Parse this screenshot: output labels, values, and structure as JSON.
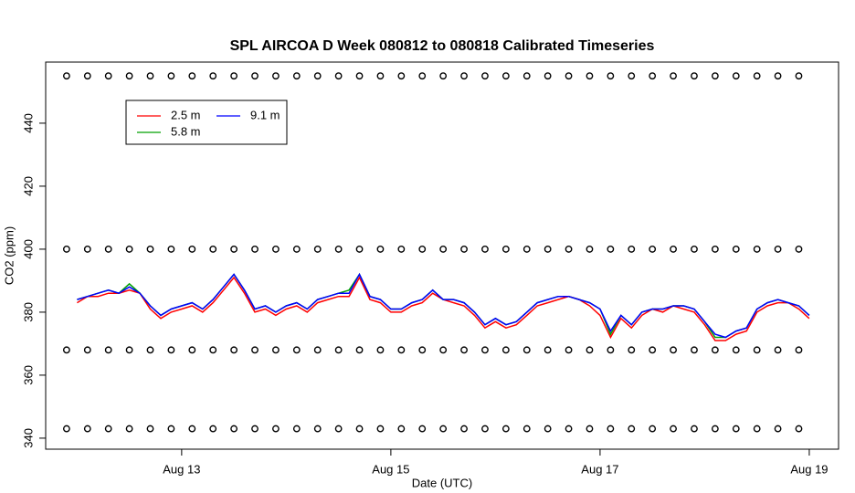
{
  "chart_data": {
    "type": "line",
    "title": "SPL AIRCOA D  Week 080812 to 080818  Calibrated Timeseries",
    "x_label": "Date (UTC)",
    "y_label": "CO2 (ppm)",
    "xlim": [
      -0.3,
      7.28
    ],
    "xticks": [
      {
        "value": 1,
        "label": "Aug 13"
      },
      {
        "value": 3,
        "label": "Aug 15"
      },
      {
        "value": 5,
        "label": "Aug 17"
      },
      {
        "value": 7,
        "label": "Aug 19"
      }
    ],
    "ylim": [
      336.5,
      459.4
    ],
    "yticks": [
      340,
      360,
      380,
      400,
      420,
      440
    ],
    "x": [
      0,
      0.1,
      0.2,
      0.3,
      0.4,
      0.5,
      0.6,
      0.7,
      0.8,
      0.9,
      1,
      1.1,
      1.2,
      1.3,
      1.4,
      1.5,
      1.6,
      1.7,
      1.8,
      1.9,
      2,
      2.1,
      2.2,
      2.3,
      2.4,
      2.5,
      2.6,
      2.7,
      2.8,
      2.9,
      3,
      3.1,
      3.2,
      3.3,
      3.4,
      3.5,
      3.6,
      3.7,
      3.8,
      3.9,
      4,
      4.1,
      4.2,
      4.3,
      4.4,
      4.5,
      4.6,
      4.7,
      4.8,
      4.9,
      5,
      5.1,
      5.2,
      5.3,
      5.4,
      5.5,
      5.6,
      5.7,
      5.8,
      5.9,
      6,
      6.1,
      6.2,
      6.3,
      6.4,
      6.5,
      6.6,
      6.7,
      6.8,
      6.9,
      7
    ],
    "series": [
      {
        "name": "2.5 m",
        "color": "#ff0000",
        "values": [
          383,
          385,
          385,
          386,
          386,
          387,
          386,
          381,
          378,
          380,
          381,
          382,
          380,
          383,
          387,
          391,
          386,
          380,
          381,
          379,
          381,
          382,
          380,
          383,
          384,
          385,
          385,
          391,
          384,
          383,
          380,
          380,
          382,
          383,
          386,
          384,
          383,
          382,
          379,
          375,
          377,
          375,
          376,
          379,
          382,
          383,
          384,
          385,
          384,
          382,
          379,
          372,
          378,
          375,
          379,
          381,
          380,
          382,
          381,
          380,
          376,
          371,
          371,
          373,
          374,
          380,
          382,
          383,
          383,
          381,
          378
        ]
      },
      {
        "name": "5.8 m",
        "color": "#00a000",
        "values": [
          384,
          385,
          386,
          387,
          386,
          389,
          386,
          382,
          379,
          381,
          382,
          383,
          381,
          384,
          388,
          392,
          387,
          381,
          382,
          380,
          382,
          383,
          381,
          384,
          385,
          386,
          387,
          392,
          385,
          384,
          381,
          381,
          383,
          384,
          387,
          384,
          384,
          383,
          380,
          376,
          378,
          376,
          377,
          380,
          383,
          384,
          385,
          385,
          384,
          383,
          381,
          373,
          379,
          376,
          380,
          381,
          381,
          382,
          382,
          381,
          377,
          372,
          372,
          374,
          375,
          381,
          383,
          384,
          383,
          382,
          379
        ]
      },
      {
        "name": "9.1 m",
        "color": "#0000ff",
        "values": [
          384,
          385,
          386,
          387,
          386,
          388,
          386,
          382,
          379,
          381,
          382,
          383,
          381,
          384,
          388,
          392,
          387,
          381,
          382,
          380,
          382,
          383,
          381,
          384,
          385,
          386,
          386,
          392,
          385,
          384,
          381,
          381,
          383,
          384,
          387,
          384,
          384,
          383,
          380,
          376,
          378,
          376,
          377,
          380,
          383,
          384,
          385,
          385,
          384,
          383,
          381,
          374,
          379,
          376,
          380,
          381,
          381,
          382,
          382,
          381,
          377,
          373,
          372,
          374,
          375,
          381,
          383,
          384,
          383,
          382,
          379
        ]
      }
    ],
    "calibration": {
      "x": [
        -0.1,
        0.1,
        0.3,
        0.5,
        0.7,
        0.9,
        1.1,
        1.3,
        1.5,
        1.7,
        1.9,
        2.1,
        2.3,
        2.5,
        2.7,
        2.9,
        3.1,
        3.3,
        3.5,
        3.7,
        3.9,
        4.1,
        4.3,
        4.5,
        4.7,
        4.9,
        5.1,
        5.3,
        5.5,
        5.7,
        5.9,
        6.1,
        6.3,
        6.5,
        6.7,
        6.9
      ],
      "series": [
        {
          "values": [
            455,
            455,
            455,
            455,
            455,
            455,
            455,
            455,
            455,
            455,
            455,
            455,
            455,
            455,
            455,
            455,
            455,
            455,
            455,
            455,
            455,
            455,
            455,
            455,
            455,
            455,
            455,
            455,
            455,
            455,
            455,
            455,
            455,
            455,
            455,
            455
          ]
        },
        {
          "values": [
            400,
            400,
            400,
            400,
            400,
            400,
            400,
            400,
            400,
            400,
            400,
            400,
            400,
            400,
            400,
            400,
            400,
            400,
            400,
            400,
            400,
            400,
            400,
            400,
            400,
            400,
            400,
            400,
            400,
            400,
            400,
            400,
            400,
            400,
            400,
            400
          ]
        },
        {
          "values": [
            368,
            368,
            368,
            368,
            368,
            368,
            368,
            368,
            368,
            368,
            368,
            368,
            368,
            368,
            368,
            368,
            368,
            368,
            368,
            368,
            368,
            368,
            368,
            368,
            368,
            368,
            368,
            368,
            368,
            368,
            368,
            368,
            368,
            368,
            368,
            368
          ]
        },
        {
          "values": [
            343,
            343,
            343,
            343,
            343,
            343,
            343,
            343,
            343,
            343,
            343,
            343,
            343,
            343,
            343,
            343,
            343,
            343,
            343,
            343,
            343,
            343,
            343,
            343,
            343,
            343,
            343,
            343,
            343,
            343,
            343,
            343,
            343,
            343,
            343,
            343
          ]
        }
      ]
    }
  }
}
